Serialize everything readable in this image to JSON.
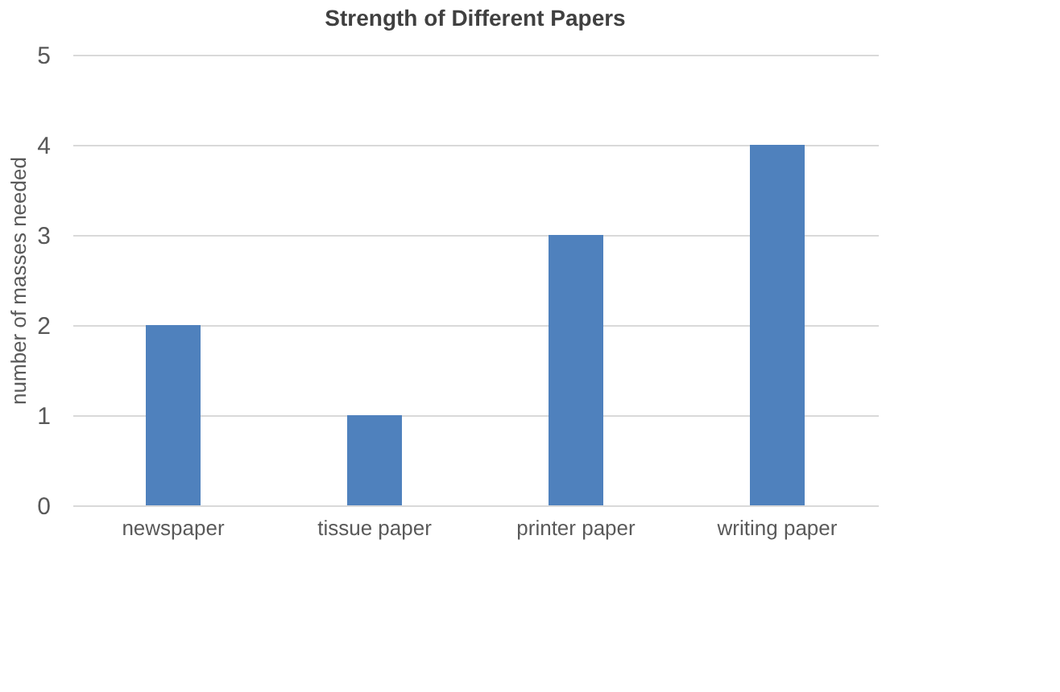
{
  "chart_data": {
    "type": "bar",
    "title": "Strength of Different Papers",
    "ylabel": "number of masses needed",
    "categories": [
      "newspaper",
      "tissue paper",
      "printer paper",
      "writing paper"
    ],
    "values": [
      2,
      1,
      3,
      4
    ],
    "color": "#4f81bd",
    "ylim": [
      0,
      5
    ],
    "yticks": [
      0,
      1,
      2,
      3,
      4,
      5
    ],
    "grid": "y"
  }
}
